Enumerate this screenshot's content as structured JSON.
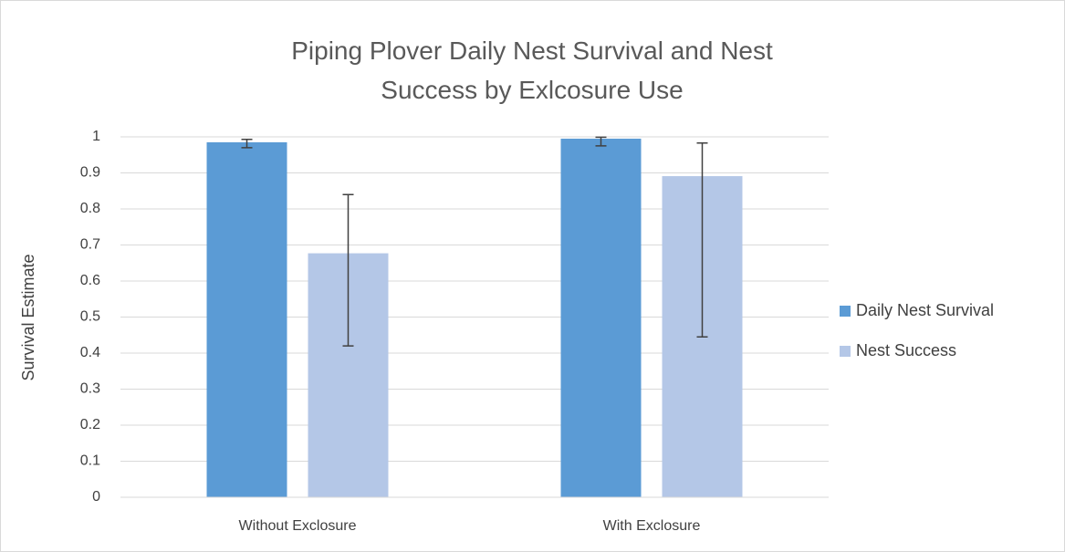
{
  "chart_data": {
    "type": "bar",
    "title": "Piping Plover Daily Nest Survival and Nest Success by Exlcosure Use",
    "y_label": "Survival Estimate",
    "categories": [
      "Without Exclosure",
      "With Exclosure"
    ],
    "series": [
      {
        "name": "Daily Nest Survival",
        "color": "#5b9bd5",
        "values": [
          0.985,
          0.995
        ],
        "lower": [
          0.97,
          0.975
        ],
        "upper": [
          0.993,
          0.999
        ]
      },
      {
        "name": "Nest Success",
        "color": "#b4c7e7",
        "values": [
          0.677,
          0.891
        ],
        "lower": [
          0.42,
          0.445
        ],
        "upper": [
          0.84,
          0.983
        ]
      }
    ],
    "ylim": [
      0,
      1
    ],
    "yticks": [
      0,
      0.1,
      0.2,
      0.3,
      0.4,
      0.5,
      0.6,
      0.7,
      0.8,
      0.9,
      1
    ],
    "grid": true,
    "legend": "right"
  }
}
